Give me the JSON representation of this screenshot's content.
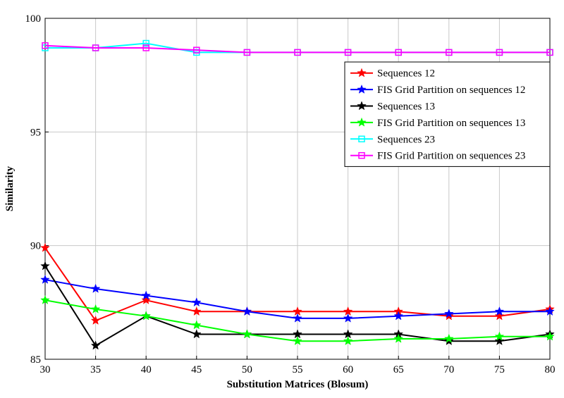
{
  "chart_data": {
    "type": "line",
    "title": "",
    "xlabel": "Substitution Matrices (Blosum)",
    "ylabel": "Similarity",
    "x": [
      30,
      35,
      40,
      45,
      50,
      55,
      60,
      65,
      70,
      75,
      80
    ],
    "xlim": [
      30,
      80
    ],
    "ylim": [
      85,
      100
    ],
    "xticks": [
      30,
      35,
      40,
      45,
      50,
      55,
      60,
      65,
      70,
      75,
      80
    ],
    "yticks": [
      85,
      90,
      95,
      100
    ],
    "grid": true,
    "legend_position": "top-right",
    "series": [
      {
        "name": "Sequences 12",
        "color": "#ff0000",
        "marker": "star",
        "values": [
          89.9,
          86.7,
          87.6,
          87.1,
          87.1,
          87.1,
          87.1,
          87.1,
          86.9,
          86.9,
          87.2
        ]
      },
      {
        "name": "FIS Grid Partition on sequences 12",
        "color": "#0000ff",
        "marker": "star",
        "values": [
          88.5,
          88.1,
          87.8,
          87.5,
          87.1,
          86.8,
          86.8,
          86.9,
          87.0,
          87.1,
          87.1
        ]
      },
      {
        "name": "Sequences 13",
        "color": "#000000",
        "marker": "star",
        "values": [
          89.1,
          85.6,
          86.9,
          86.1,
          86.1,
          86.1,
          86.1,
          86.1,
          85.8,
          85.8,
          86.1
        ]
      },
      {
        "name": "FIS Grid Partition on sequences 13",
        "color": "#00ff00",
        "marker": "star",
        "values": [
          87.6,
          87.2,
          86.9,
          86.5,
          86.1,
          85.8,
          85.8,
          85.9,
          85.9,
          86.0,
          86.0
        ]
      },
      {
        "name": "Sequences 23",
        "color": "#00ffff",
        "marker": "square",
        "values": [
          98.7,
          98.7,
          98.9,
          98.5,
          98.5,
          98.5,
          98.5,
          98.5,
          98.5,
          98.5,
          98.5
        ]
      },
      {
        "name": "FIS Grid Partition on sequences 23",
        "color": "#ff00ff",
        "marker": "square",
        "values": [
          98.8,
          98.7,
          98.7,
          98.6,
          98.5,
          98.5,
          98.5,
          98.5,
          98.5,
          98.5,
          98.5
        ]
      }
    ]
  }
}
